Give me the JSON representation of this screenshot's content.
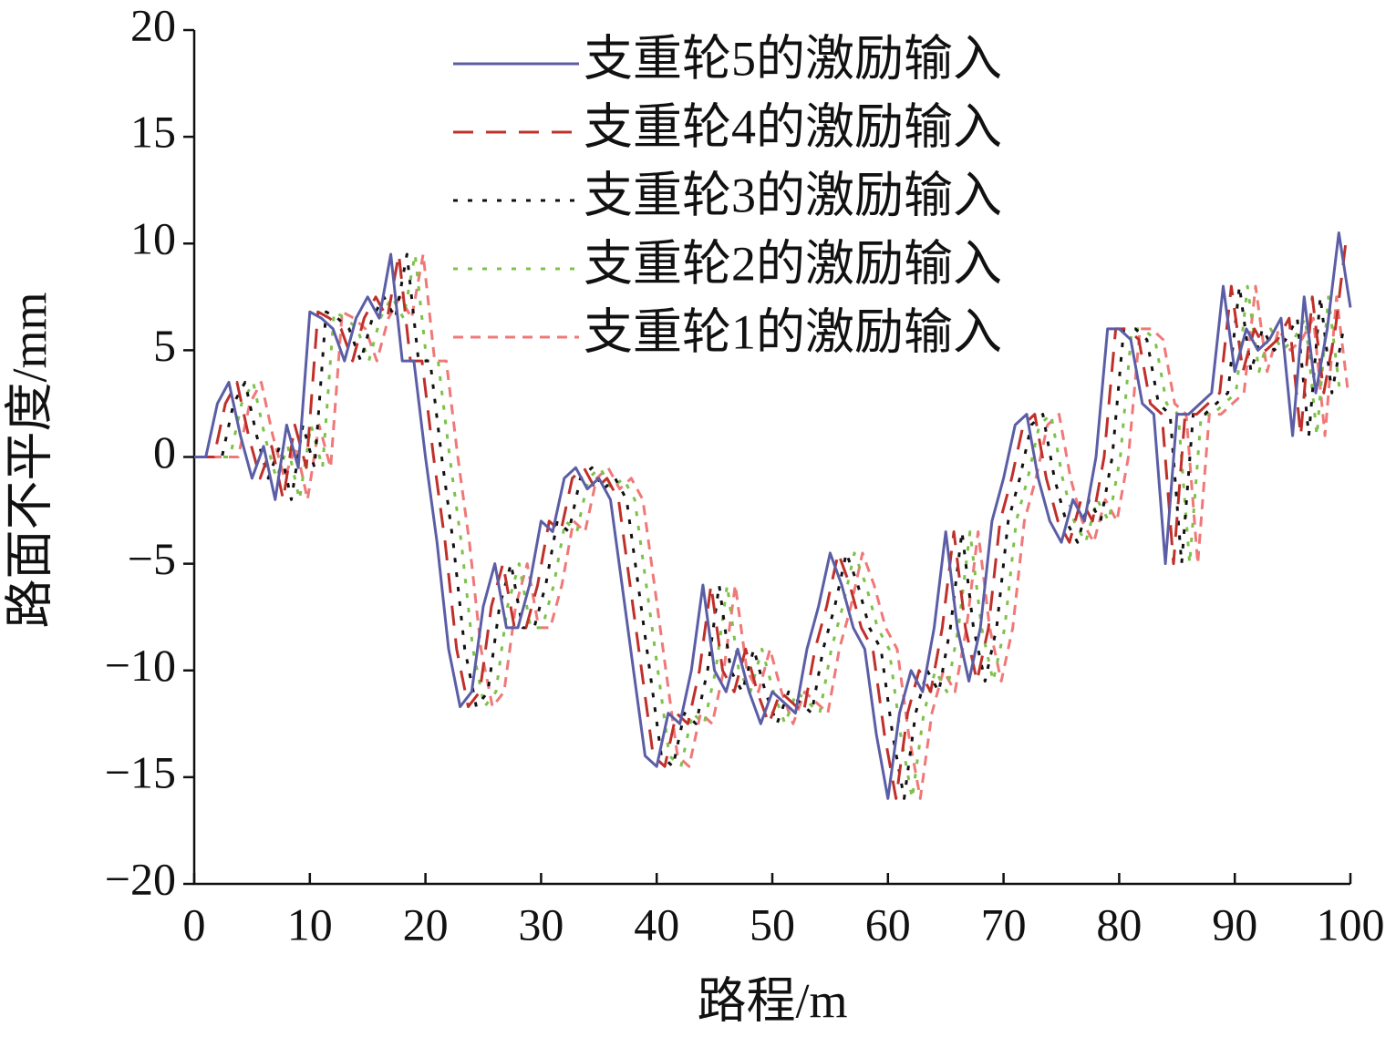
{
  "chart_data": {
    "type": "line",
    "xlabel": "路程/m",
    "ylabel": "路面不平度/mm",
    "xlim": [
      0,
      100
    ],
    "xticks": [
      0,
      10,
      20,
      30,
      40,
      50,
      60,
      70,
      80,
      90,
      100
    ],
    "ylim": [
      -20,
      20
    ],
    "yticks": [
      {
        "value": -20,
        "label": "−20"
      },
      {
        "value": -15,
        "label": "−15"
      },
      {
        "value": -10,
        "label": "−10"
      },
      {
        "value": -5,
        "label": "−5"
      },
      0,
      5,
      10,
      15,
      20
    ],
    "legend": "upper right",
    "series": [
      {
        "name": "支重轮5的激励输入",
        "color": "#5b5ea6",
        "dash": "solid",
        "x": [
          0,
          1,
          2,
          3,
          4,
          5,
          6,
          7,
          8,
          9,
          10,
          11,
          12,
          13,
          14,
          15,
          16,
          17,
          18,
          19,
          20,
          21,
          22,
          23,
          24,
          25,
          26,
          27,
          28,
          29,
          30,
          31,
          32,
          33,
          34,
          35,
          36,
          37,
          38,
          39,
          40,
          41,
          42,
          43,
          44,
          45,
          46,
          47,
          48,
          49,
          50,
          51,
          52,
          53,
          54,
          55,
          56,
          57,
          58,
          59,
          60,
          61,
          62,
          63,
          64,
          65,
          66,
          67,
          68,
          69,
          70,
          71,
          72,
          73,
          74,
          75,
          76,
          77,
          78,
          79,
          80,
          81,
          82,
          83,
          84,
          85,
          86,
          87,
          88,
          89,
          90,
          91,
          92,
          93,
          94,
          95,
          96,
          97,
          98,
          99,
          100
        ],
        "values": [
          0,
          0,
          2.5,
          3.5,
          1,
          -1,
          0.5,
          -2,
          1.5,
          -0.5,
          6.8,
          6.5,
          6,
          4.5,
          6.5,
          7.5,
          6.5,
          9.5,
          4.5,
          4.5,
          0,
          -4,
          -9,
          -11.7,
          -11,
          -7,
          -5,
          -8,
          -8,
          -6,
          -3,
          -3.5,
          -1,
          -0.5,
          -1.5,
          -1,
          -2,
          -6,
          -10,
          -14,
          -14.5,
          -12,
          -12.5,
          -10,
          -6,
          -10,
          -11,
          -9,
          -11,
          -12.5,
          -11,
          -11.5,
          -12,
          -9,
          -7,
          -4.5,
          -6,
          -8,
          -9,
          -13,
          -16,
          -12,
          -10,
          -11,
          -8,
          -3.5,
          -8,
          -10.5,
          -8,
          -3,
          -1,
          1.5,
          2,
          -1,
          -3,
          -4,
          -2,
          -3,
          0,
          6,
          6,
          5.5,
          2.5,
          2,
          -5,
          2,
          2,
          2.5,
          3,
          8,
          4,
          6,
          5,
          5.5,
          6.5,
          1,
          7.5,
          3,
          6,
          10.5,
          7
        ]
      },
      {
        "name": "支重轮4的激励输入",
        "color": "#c0302a",
        "dash": "dashed",
        "x": [
          0,
          0.7,
          1.7,
          2.7,
          3.7,
          4.7,
          5.7,
          6.7,
          7.7,
          8.7,
          9.7,
          10.7,
          11.7,
          12.7,
          13.7,
          14.7,
          15.7,
          16.7,
          17.7,
          18.7,
          19.7,
          20.7,
          21.7,
          22.7,
          23.7,
          24.7,
          25.7,
          26.7,
          27.7,
          28.7,
          29.7,
          30.7,
          31.7,
          32.7,
          33.7,
          34.7,
          35.7,
          36.7,
          37.7,
          38.7,
          39.7,
          40.7,
          41.7,
          42.7,
          43.7,
          44.7,
          45.7,
          46.7,
          47.7,
          48.7,
          49.7,
          50.7,
          51.7,
          52.7,
          53.7,
          54.7,
          55.7,
          56.7,
          57.7,
          58.7,
          59.7,
          60.7,
          61.7,
          62.7,
          63.7,
          64.7,
          65.7,
          66.7,
          67.7,
          68.7,
          69.7,
          70.7,
          71.7,
          72.7,
          73.7,
          74.7,
          75.7,
          76.7,
          77.7,
          78.7,
          79.7,
          80.7,
          81.7,
          82.7,
          83.7,
          84.7,
          85.7,
          86.7,
          87.7,
          88.7,
          89.7,
          90.7,
          91.7,
          92.7,
          93.7,
          94.7,
          95.7,
          96.7,
          97.7,
          98.7,
          99.7
        ],
        "values": [
          0,
          0,
          0,
          2.5,
          3.5,
          1,
          -1,
          0.5,
          -2,
          1.5,
          -0.5,
          6.8,
          6.5,
          6,
          4.5,
          6.5,
          7.5,
          6.5,
          9.5,
          4.5,
          4.5,
          0,
          -4,
          -9,
          -11.7,
          -11,
          -7,
          -5,
          -8,
          -8,
          -6,
          -3,
          -3.5,
          -1,
          -0.5,
          -1.5,
          -1,
          -2,
          -6,
          -10,
          -14,
          -14.5,
          -12,
          -12.5,
          -10,
          -6,
          -10,
          -11,
          -9,
          -11,
          -12.5,
          -11,
          -11.5,
          -12,
          -9,
          -7,
          -4.5,
          -6,
          -8,
          -9,
          -13,
          -16,
          -12,
          -10,
          -11,
          -8,
          -3.5,
          -8,
          -10.5,
          -8,
          -3,
          -1,
          1.5,
          2,
          -1,
          -3,
          -4,
          -2,
          -3,
          0,
          6,
          6,
          5.5,
          2.5,
          2,
          -5,
          2,
          2,
          2.5,
          3,
          8,
          4,
          6,
          5,
          5.5,
          6.5,
          1,
          7.5,
          3,
          6,
          10.5
        ]
      },
      {
        "name": "支重轮3的激励输入",
        "color": "#111111",
        "dash": "dotted",
        "x": [
          0,
          1.4,
          2.4,
          3.4,
          4.4,
          5.4,
          6.4,
          7.4,
          8.4,
          9.4,
          10.4,
          11.4,
          12.4,
          13.4,
          14.4,
          15.4,
          16.4,
          17.4,
          18.4,
          19.4,
          20.4,
          21.4,
          22.4,
          23.4,
          24.4,
          25.4,
          26.4,
          27.4,
          28.4,
          29.4,
          30.4,
          31.4,
          32.4,
          33.4,
          34.4,
          35.4,
          36.4,
          37.4,
          38.4,
          39.4,
          40.4,
          41.4,
          42.4,
          43.4,
          44.4,
          45.4,
          46.4,
          47.4,
          48.4,
          49.4,
          50.4,
          51.4,
          52.4,
          53.4,
          54.4,
          55.4,
          56.4,
          57.4,
          58.4,
          59.4,
          60.4,
          61.4,
          62.4,
          63.4,
          64.4,
          65.4,
          66.4,
          67.4,
          68.4,
          69.4,
          70.4,
          71.4,
          72.4,
          73.4,
          74.4,
          75.4,
          76.4,
          77.4,
          78.4,
          79.4,
          80.4,
          81.4,
          82.4,
          83.4,
          84.4,
          85.4,
          86.4,
          87.4,
          88.4,
          89.4,
          90.4,
          91.4,
          92.4,
          93.4,
          94.4,
          95.4,
          96.4,
          97.4,
          98.4,
          99.4
        ],
        "values": [
          0,
          0,
          0,
          2.5,
          3.5,
          1,
          -1,
          0.5,
          -2,
          1.5,
          -0.5,
          6.8,
          6.5,
          6,
          4.5,
          6.5,
          7.5,
          6.5,
          9.5,
          4.5,
          4.5,
          0,
          -4,
          -9,
          -11.7,
          -11,
          -7,
          -5,
          -8,
          -8,
          -6,
          -3,
          -3.5,
          -1,
          -0.5,
          -1.5,
          -1,
          -2,
          -6,
          -10,
          -14,
          -14.5,
          -12,
          -12.5,
          -10,
          -6,
          -10,
          -11,
          -9,
          -11,
          -12.5,
          -11,
          -11.5,
          -12,
          -9,
          -7,
          -4.5,
          -6,
          -8,
          -9,
          -13,
          -16,
          -12,
          -10,
          -11,
          -8,
          -3.5,
          -8,
          -10.5,
          -8,
          -3,
          -1,
          1.5,
          2,
          -1,
          -3,
          -4,
          -2,
          -3,
          0,
          6,
          6,
          5.5,
          2.5,
          2,
          -5,
          2,
          2,
          2.5,
          3,
          8,
          4,
          6,
          5,
          5.5,
          6.5,
          1,
          7.5,
          3,
          6
        ]
      },
      {
        "name": "支重轮2的激励输入",
        "color": "#7dc14a",
        "dash": "dotted",
        "x": [
          0,
          2.1,
          3.1,
          4.1,
          5.1,
          6.1,
          7.1,
          8.1,
          9.1,
          10.1,
          11.1,
          12.1,
          13.1,
          14.1,
          15.1,
          16.1,
          17.1,
          18.1,
          19.1,
          20.1,
          21.1,
          22.1,
          23.1,
          24.1,
          25.1,
          26.1,
          27.1,
          28.1,
          29.1,
          30.1,
          31.1,
          32.1,
          33.1,
          34.1,
          35.1,
          36.1,
          37.1,
          38.1,
          39.1,
          40.1,
          41.1,
          42.1,
          43.1,
          44.1,
          45.1,
          46.1,
          47.1,
          48.1,
          49.1,
          50.1,
          51.1,
          52.1,
          53.1,
          54.1,
          55.1,
          56.1,
          57.1,
          58.1,
          59.1,
          60.1,
          61.1,
          62.1,
          63.1,
          64.1,
          65.1,
          66.1,
          67.1,
          68.1,
          69.1,
          70.1,
          71.1,
          72.1,
          73.1,
          74.1,
          75.1,
          76.1,
          77.1,
          78.1,
          79.1,
          80.1,
          81.1,
          82.1,
          83.1,
          84.1,
          85.1,
          86.1,
          87.1,
          88.1,
          89.1,
          90.1,
          91.1,
          92.1,
          93.1,
          94.1,
          95.1,
          96.1,
          97.1,
          98.1,
          99.1
        ],
        "values": [
          0,
          0,
          0,
          2.5,
          3.5,
          1,
          -1,
          0.5,
          -2,
          1.5,
          -0.5,
          6.8,
          6.5,
          6,
          4.5,
          6.5,
          7.5,
          6.5,
          9.5,
          4.5,
          4.5,
          0,
          -4,
          -9,
          -11.7,
          -11,
          -7,
          -5,
          -8,
          -8,
          -6,
          -3,
          -3.5,
          -1,
          -0.5,
          -1.5,
          -1,
          -2,
          -6,
          -10,
          -14,
          -14.5,
          -12,
          -12.5,
          -10,
          -6,
          -10,
          -11,
          -9,
          -11,
          -12.5,
          -11,
          -11.5,
          -12,
          -9,
          -7,
          -4.5,
          -6,
          -8,
          -9,
          -13,
          -16,
          -12,
          -10,
          -11,
          -8,
          -3.5,
          -8,
          -10.5,
          -8,
          -3,
          -1,
          1.5,
          2,
          -1,
          -3,
          -4,
          -2,
          -3,
          0,
          6,
          6,
          5.5,
          2.5,
          2,
          -5,
          2,
          2,
          2.5,
          3,
          8,
          4,
          6,
          5,
          5.5,
          6.5,
          1,
          7.5,
          3
        ]
      },
      {
        "name": "支重轮1的激励输入",
        "color": "#f07878",
        "dash": "shortdash",
        "x": [
          0,
          2.8,
          3.8,
          4.8,
          5.8,
          6.8,
          7.8,
          8.8,
          9.8,
          10.8,
          11.8,
          12.8,
          13.8,
          14.8,
          15.8,
          16.8,
          17.8,
          18.8,
          19.8,
          20.8,
          21.8,
          22.8,
          23.8,
          24.8,
          25.8,
          26.8,
          27.8,
          28.8,
          29.8,
          30.8,
          31.8,
          32.8,
          33.8,
          34.8,
          35.8,
          36.8,
          37.8,
          38.8,
          39.8,
          40.8,
          41.8,
          42.8,
          43.8,
          44.8,
          45.8,
          46.8,
          47.8,
          48.8,
          49.8,
          50.8,
          51.8,
          52.8,
          53.8,
          54.8,
          55.8,
          56.8,
          57.8,
          58.8,
          59.8,
          60.8,
          61.8,
          62.8,
          63.8,
          64.8,
          65.8,
          66.8,
          67.8,
          68.8,
          69.8,
          70.8,
          71.8,
          72.8,
          73.8,
          74.8,
          75.8,
          76.8,
          77.8,
          78.8,
          79.8,
          80.8,
          81.8,
          82.8,
          83.8,
          84.8,
          85.8,
          86.8,
          87.8,
          88.8,
          89.8,
          90.8,
          91.8,
          92.8,
          93.8,
          94.8,
          95.8,
          96.8,
          97.8,
          98.8,
          99.8
        ],
        "values": [
          0,
          0,
          0,
          2.5,
          3.5,
          1,
          -1,
          0.5,
          -2,
          1.5,
          -0.5,
          6.8,
          6.5,
          6,
          4.5,
          6.5,
          7.5,
          6.5,
          9.5,
          4.5,
          4.5,
          0,
          -4,
          -9,
          -11.7,
          -11,
          -7,
          -5,
          -8,
          -8,
          -6,
          -3,
          -3.5,
          -1,
          -0.5,
          -1.5,
          -1,
          -2,
          -6,
          -10,
          -14,
          -14.5,
          -12,
          -12.5,
          -10,
          -6,
          -10,
          -11,
          -9,
          -11,
          -12.5,
          -11,
          -11.5,
          -12,
          -9,
          -7,
          -4.5,
          -6,
          -8,
          -9,
          -13,
          -16,
          -12,
          -10,
          -11,
          -8,
          -3.5,
          -8,
          -10.5,
          -8,
          -3,
          -1,
          1.5,
          2,
          -1,
          -3,
          -4,
          -2,
          -3,
          0,
          6,
          6,
          5.5,
          2.5,
          2,
          -5,
          2,
          2,
          2.5,
          3,
          8,
          4,
          6,
          5,
          5.5,
          6.5,
          1,
          7.5,
          3
        ]
      }
    ]
  }
}
